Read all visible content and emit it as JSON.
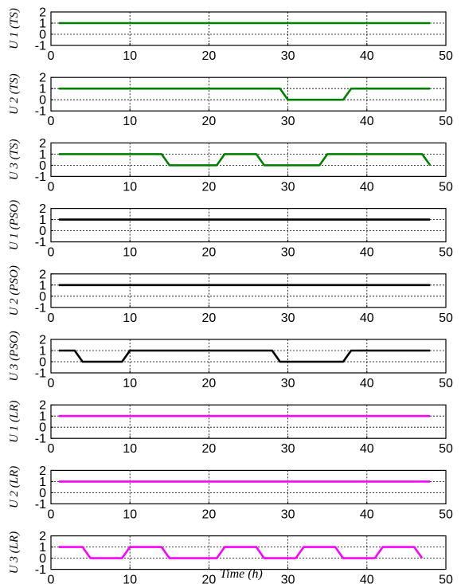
{
  "chart_data": {
    "type": "line",
    "xlabel": "Time (h)",
    "xlim": [
      0,
      50
    ],
    "xticks": [
      0,
      10,
      20,
      30,
      40,
      50
    ],
    "ylim": [
      -1,
      2
    ],
    "yticks": [
      2,
      1,
      0,
      -1
    ],
    "grid": true,
    "panels": [
      {
        "ylabel": "U 1 (TS)",
        "color": "#008000",
        "x": [
          1,
          48
        ],
        "y": [
          1,
          1
        ]
      },
      {
        "ylabel": "U 2 (TS)",
        "color": "#008000",
        "x": [
          1,
          29,
          30,
          37,
          38,
          48
        ],
        "y": [
          1,
          1,
          0,
          0,
          1,
          1
        ]
      },
      {
        "ylabel": "U 3 (TS)",
        "color": "#008000",
        "x": [
          1,
          14,
          15,
          21,
          22,
          26,
          27,
          34,
          35,
          47,
          48
        ],
        "y": [
          1,
          1,
          0,
          0,
          1,
          1,
          0,
          0,
          1,
          1,
          0
        ]
      },
      {
        "ylabel": "U 1 (PSO)",
        "color": "#000000",
        "x": [
          1,
          48
        ],
        "y": [
          1,
          1
        ]
      },
      {
        "ylabel": "U 2 (PSO)",
        "color": "#000000",
        "x": [
          1,
          48
        ],
        "y": [
          1,
          1
        ]
      },
      {
        "ylabel": "U 3 (PSO)",
        "color": "#000000",
        "x": [
          1,
          3,
          4,
          9,
          10,
          28,
          29,
          37,
          38,
          48
        ],
        "y": [
          1,
          1,
          0,
          0,
          1,
          1,
          0,
          0,
          1,
          1
        ]
      },
      {
        "ylabel": "U 1 (LR)",
        "color": "#ff00ff",
        "x": [
          1,
          48
        ],
        "y": [
          1,
          1
        ]
      },
      {
        "ylabel": "U 2 (LR)",
        "color": "#ff00ff",
        "x": [
          1,
          48
        ],
        "y": [
          1,
          1
        ]
      },
      {
        "ylabel": "U 3 (LR)",
        "color": "#ff00ff",
        "x": [
          1,
          4,
          5,
          9,
          10,
          14,
          15,
          21,
          22,
          26,
          27,
          31,
          32,
          36,
          37,
          41,
          42,
          46,
          47
        ],
        "y": [
          1,
          1,
          0,
          0,
          1,
          1,
          0,
          0,
          1,
          1,
          0,
          0,
          1,
          1,
          0,
          0,
          1,
          1,
          0
        ]
      }
    ]
  }
}
